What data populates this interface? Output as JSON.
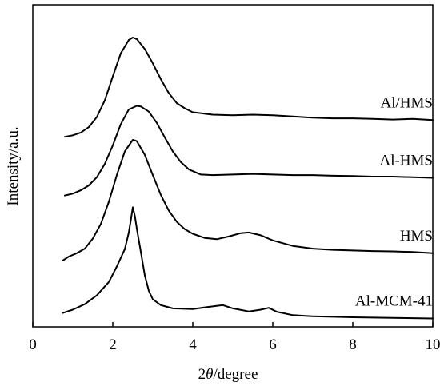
{
  "chart_data": {
    "type": "line",
    "xlabel_prefix": "2",
    "xlabel_theta": "θ",
    "xlabel_suffix": "/degree",
    "ylabel": "Intensity/a.u.",
    "xlim": [
      0,
      10
    ],
    "x_ticks": [
      0,
      2,
      4,
      6,
      8,
      10
    ],
    "x_tick_labels": [
      "0",
      "2",
      "4",
      "6",
      "8",
      "10"
    ],
    "y_tick_labels": false,
    "grid": false,
    "ylim": [
      0,
      100
    ],
    "series": [
      {
        "name": "Al/HMS",
        "points": [
          [
            0.8,
            60.2
          ],
          [
            1.0,
            60.7
          ],
          [
            1.2,
            61.6
          ],
          [
            1.4,
            63.4
          ],
          [
            1.6,
            66.7
          ],
          [
            1.8,
            72.2
          ],
          [
            2.0,
            80.1
          ],
          [
            2.2,
            87.7
          ],
          [
            2.4,
            92.1
          ],
          [
            2.5,
            92.9
          ],
          [
            2.6,
            92.4
          ],
          [
            2.8,
            89.1
          ],
          [
            3.0,
            84.4
          ],
          [
            3.2,
            79.2
          ],
          [
            3.4,
            74.6
          ],
          [
            3.6,
            71.3
          ],
          [
            3.8,
            69.6
          ],
          [
            4.0,
            68.3
          ],
          [
            4.5,
            67.5
          ],
          [
            5.0,
            67.3
          ],
          [
            5.5,
            67.5
          ],
          [
            6.0,
            67.3
          ],
          [
            6.5,
            66.9
          ],
          [
            7.0,
            66.5
          ],
          [
            7.5,
            66.3
          ],
          [
            8.0,
            66.3
          ],
          [
            8.5,
            66.1
          ],
          [
            9.0,
            65.9
          ],
          [
            9.5,
            66.1
          ],
          [
            10.0,
            65.7
          ]
        ]
      },
      {
        "name": "Al-HMS",
        "points": [
          [
            0.8,
            40.9
          ],
          [
            1.0,
            41.5
          ],
          [
            1.2,
            42.6
          ],
          [
            1.4,
            44.2
          ],
          [
            1.6,
            46.9
          ],
          [
            1.8,
            51.3
          ],
          [
            2.0,
            57.4
          ],
          [
            2.2,
            64.4
          ],
          [
            2.4,
            69.2
          ],
          [
            2.6,
            70.4
          ],
          [
            2.7,
            70.2
          ],
          [
            2.9,
            68.5
          ],
          [
            3.1,
            64.8
          ],
          [
            3.3,
            60.0
          ],
          [
            3.5,
            55.4
          ],
          [
            3.7,
            51.9
          ],
          [
            3.9,
            49.5
          ],
          [
            4.2,
            47.8
          ],
          [
            4.5,
            47.6
          ],
          [
            5.0,
            47.8
          ],
          [
            5.5,
            48.0
          ],
          [
            6.0,
            47.8
          ],
          [
            6.5,
            47.6
          ],
          [
            7.0,
            47.6
          ],
          [
            7.5,
            47.4
          ],
          [
            8.0,
            47.3
          ],
          [
            8.5,
            47.1
          ],
          [
            9.0,
            47.1
          ],
          [
            9.5,
            46.9
          ],
          [
            10.0,
            46.7
          ]
        ]
      },
      {
        "name": "HMS",
        "points": [
          [
            0.75,
            19.5
          ],
          [
            0.9,
            20.8
          ],
          [
            1.1,
            21.9
          ],
          [
            1.3,
            23.4
          ],
          [
            1.5,
            26.7
          ],
          [
            1.7,
            31.5
          ],
          [
            1.9,
            38.8
          ],
          [
            2.1,
            47.6
          ],
          [
            2.3,
            55.4
          ],
          [
            2.5,
            59.2
          ],
          [
            2.6,
            58.8
          ],
          [
            2.8,
            54.3
          ],
          [
            3.0,
            47.6
          ],
          [
            3.2,
            41.1
          ],
          [
            3.4,
            35.9
          ],
          [
            3.6,
            32.2
          ],
          [
            3.8,
            29.8
          ],
          [
            4.0,
            28.3
          ],
          [
            4.3,
            26.9
          ],
          [
            4.6,
            26.5
          ],
          [
            4.9,
            27.4
          ],
          [
            5.2,
            28.5
          ],
          [
            5.4,
            28.7
          ],
          [
            5.7,
            27.8
          ],
          [
            6.0,
            26.1
          ],
          [
            6.5,
            24.3
          ],
          [
            7.0,
            23.4
          ],
          [
            7.5,
            23.0
          ],
          [
            8.0,
            22.8
          ],
          [
            8.5,
            22.6
          ],
          [
            9.0,
            22.5
          ],
          [
            9.5,
            22.3
          ],
          [
            10.0,
            21.9
          ]
        ]
      },
      {
        "name": "Al-MCM-41",
        "points": [
          [
            0.75,
            2.2
          ],
          [
            1.0,
            3.3
          ],
          [
            1.3,
            5.1
          ],
          [
            1.6,
            8.0
          ],
          [
            1.9,
            12.4
          ],
          [
            2.1,
            17.5
          ],
          [
            2.3,
            23.2
          ],
          [
            2.4,
            28.7
          ],
          [
            2.45,
            32.7
          ],
          [
            2.5,
            37.0
          ],
          [
            2.55,
            34.3
          ],
          [
            2.6,
            30.0
          ],
          [
            2.7,
            22.4
          ],
          [
            2.8,
            14.6
          ],
          [
            2.9,
            9.5
          ],
          [
            3.0,
            6.7
          ],
          [
            3.2,
            4.8
          ],
          [
            3.5,
            3.7
          ],
          [
            4.0,
            3.5
          ],
          [
            4.4,
            4.2
          ],
          [
            4.75,
            4.8
          ],
          [
            5.0,
            3.7
          ],
          [
            5.4,
            2.7
          ],
          [
            5.7,
            3.3
          ],
          [
            5.9,
            3.9
          ],
          [
            6.1,
            2.6
          ],
          [
            6.5,
            1.5
          ],
          [
            7.0,
            1.1
          ],
          [
            8.0,
            0.8
          ],
          [
            9.0,
            0.6
          ],
          [
            10.0,
            0.4
          ]
        ]
      }
    ]
  }
}
